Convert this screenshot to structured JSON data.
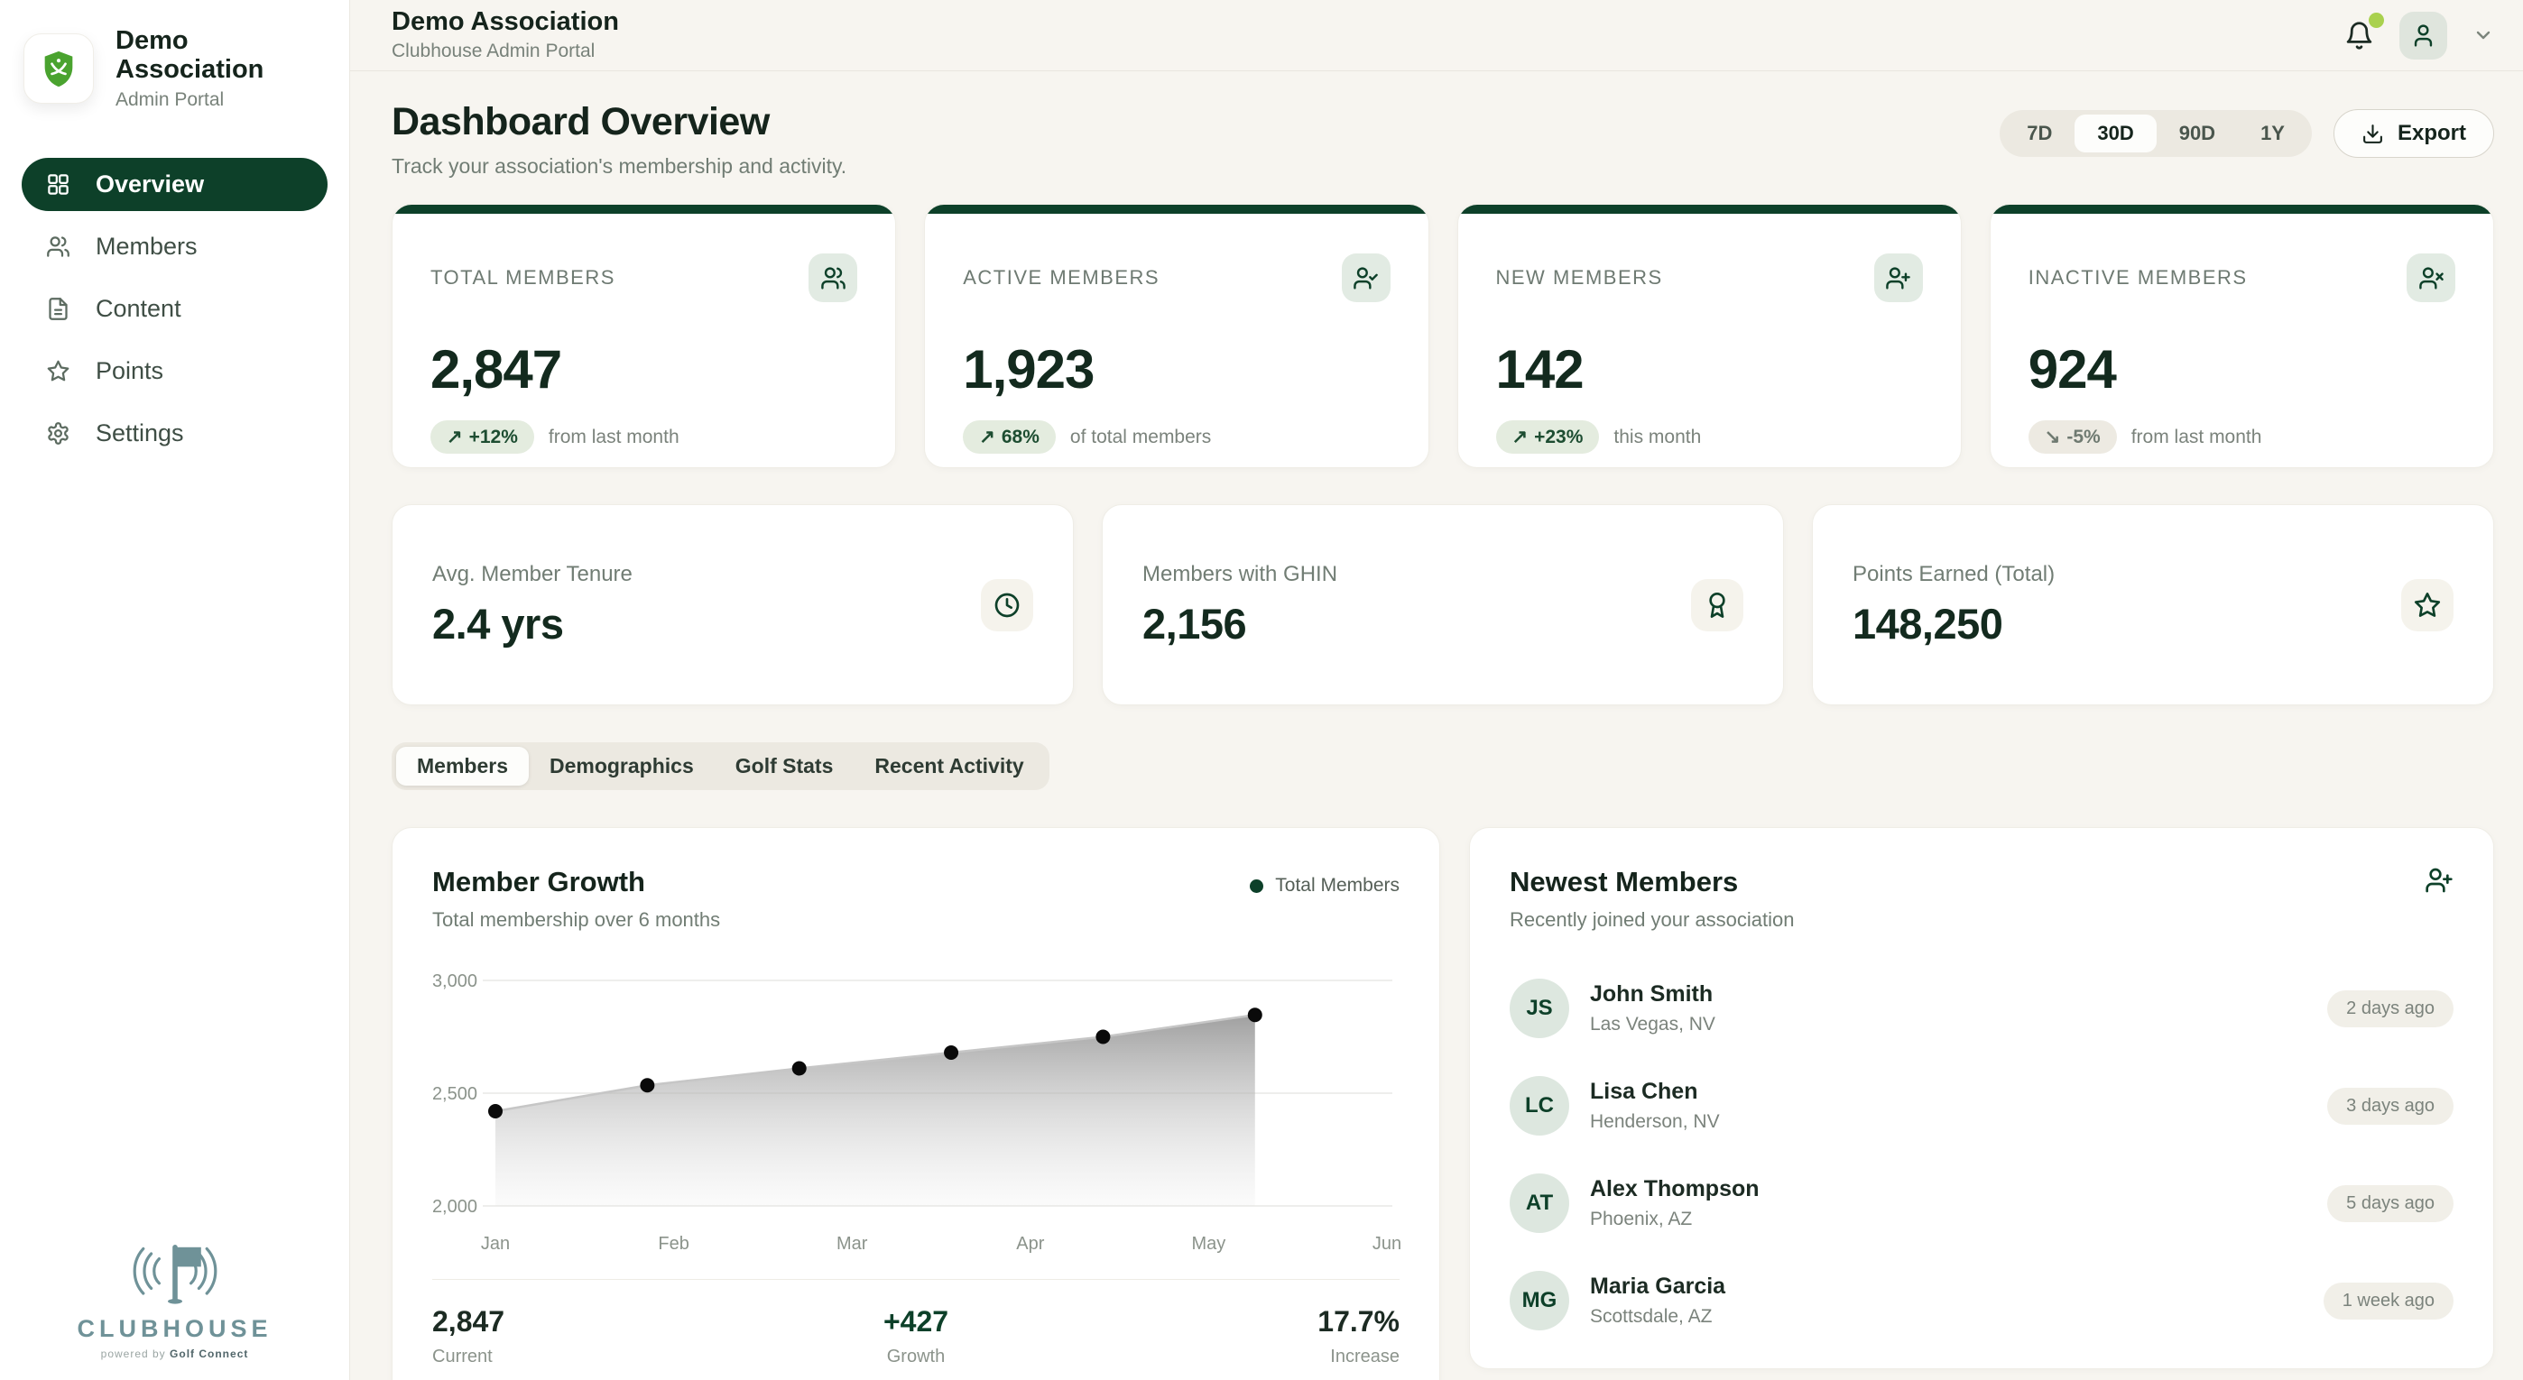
{
  "colors": {
    "accent_dark_green": "#0d4029",
    "logo_green": "#4aa32f",
    "notification_dot": "#a9d14e",
    "badge_green_bg": "#e4ecdf",
    "badge_green_text": "#1d4d31",
    "clubhouse_teal": "#6f9298",
    "page_background": "#f7f5f0",
    "chart_dot": "#0a0a0a",
    "chart_line": "#c6c6c6"
  },
  "sidebar": {
    "brand": {
      "name": "Demo Association",
      "subtitle": "Admin Portal",
      "logo_icon": "shield-golf-icon"
    },
    "items": [
      {
        "label": "Overview",
        "icon": "dashboard-icon",
        "active": true
      },
      {
        "label": "Members",
        "icon": "users-icon",
        "active": false
      },
      {
        "label": "Content",
        "icon": "file-text-icon",
        "active": false
      },
      {
        "label": "Points",
        "icon": "star-icon",
        "active": false
      },
      {
        "label": "Settings",
        "icon": "settings-icon",
        "active": false
      }
    ],
    "footer": {
      "logo_icon": "golf-flag-signal-icon",
      "logo_text": "CLUBHOUSE",
      "powered_prefix": "powered by",
      "powered_brand": "Golf Connect"
    }
  },
  "header": {
    "title": "Demo Association",
    "subtitle": "Clubhouse Admin Portal",
    "notification_dot": true,
    "icons": [
      "bell-icon",
      "user-icon",
      "chevron-down-icon"
    ]
  },
  "page": {
    "title": "Dashboard Overview",
    "subtitle": "Track your association's membership and activity.",
    "ranges": [
      "7D",
      "30D",
      "90D",
      "1Y"
    ],
    "active_range": "30D",
    "export_label": "Export",
    "export_icon": "download-icon"
  },
  "stat_cards": [
    {
      "label": "TOTAL MEMBERS",
      "value": "2,847",
      "badge": "+12%",
      "trend": "up",
      "badge_style": "green",
      "note": "from last month",
      "icon": "users-icon"
    },
    {
      "label": "ACTIVE MEMBERS",
      "value": "1,923",
      "badge": "68%",
      "trend": "up",
      "badge_style": "green",
      "note": "of total members",
      "icon": "user-check-icon"
    },
    {
      "label": "NEW MEMBERS",
      "value": "142",
      "badge": "+23%",
      "trend": "up",
      "badge_style": "green",
      "note": "this month",
      "icon": "user-plus-icon"
    },
    {
      "label": "INACTIVE MEMBERS",
      "value": "924",
      "badge": "-5%",
      "trend": "down",
      "badge_style": "neutral",
      "note": "from last month",
      "icon": "user-x-icon"
    }
  ],
  "mini_cards": [
    {
      "label": "Avg. Member Tenure",
      "value": "2.4 yrs",
      "icon": "clock-icon"
    },
    {
      "label": "Members with GHIN",
      "value": "2,156",
      "icon": "award-icon"
    },
    {
      "label": "Points Earned (Total)",
      "value": "148,250",
      "icon": "star-icon"
    }
  ],
  "tabs": {
    "items": [
      "Members",
      "Demographics",
      "Golf Stats",
      "Recent Activity"
    ],
    "active": "Members"
  },
  "growth": {
    "title": "Member Growth",
    "subtitle": "Total membership over 6 months",
    "legend": "Total Members",
    "stats": [
      {
        "value": "2,847",
        "label": "Current",
        "color": "dark"
      },
      {
        "value": "+427",
        "label": "Growth",
        "color": "green"
      },
      {
        "value": "17.7%",
        "label": "Increase",
        "color": "dark"
      }
    ]
  },
  "chart_data": {
    "type": "area",
    "title": "Member Growth",
    "x": [
      "Jan",
      "Feb",
      "Mar",
      "Apr",
      "May",
      "Jun"
    ],
    "series": [
      {
        "name": "Total Members",
        "values": [
          2420,
          2535,
          2610,
          2680,
          2750,
          2847
        ]
      }
    ],
    "ylim": [
      2000,
      3050
    ],
    "yticks": [
      2000,
      2500,
      3000
    ],
    "ytick_labels": [
      "2,000",
      "2,500",
      "3,000"
    ],
    "grid": true,
    "legend_position": "top-right"
  },
  "newest": {
    "title": "Newest Members",
    "subtitle": "Recently joined your association",
    "header_icon": "user-plus-icon",
    "members": [
      {
        "initials": "JS",
        "name": "John Smith",
        "location": "Las Vegas, NV",
        "joined": "2 days ago"
      },
      {
        "initials": "LC",
        "name": "Lisa Chen",
        "location": "Henderson, NV",
        "joined": "3 days ago"
      },
      {
        "initials": "AT",
        "name": "Alex Thompson",
        "location": "Phoenix, AZ",
        "joined": "5 days ago"
      },
      {
        "initials": "MG",
        "name": "Maria Garcia",
        "location": "Scottsdale, AZ",
        "joined": "1 week ago"
      }
    ]
  }
}
